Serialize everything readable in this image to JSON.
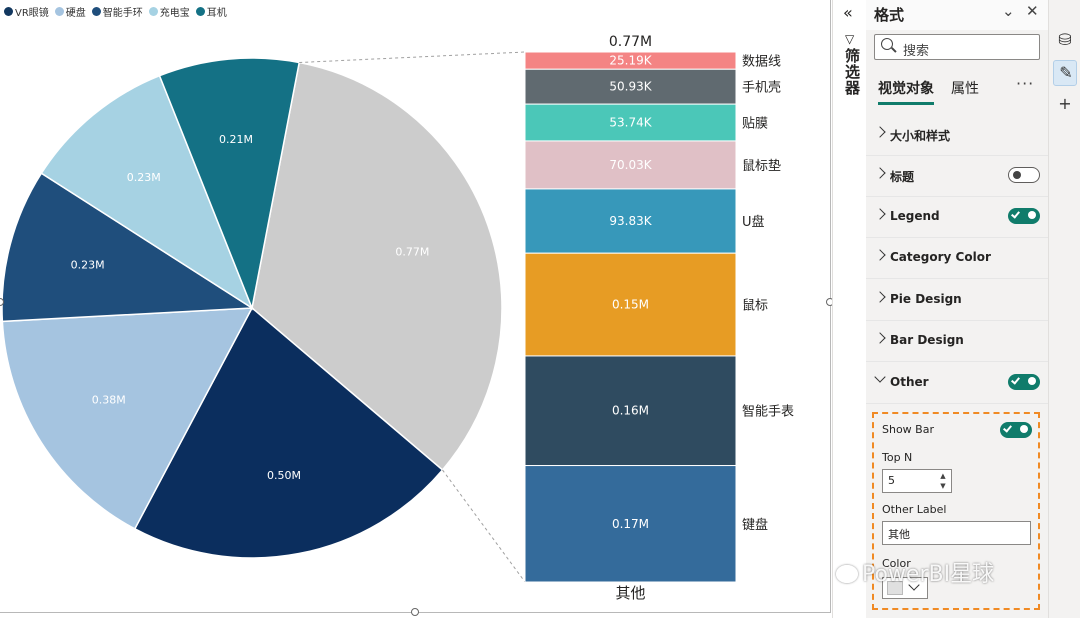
{
  "canvas": {
    "legend": [
      {
        "label": "VR眼镜",
        "color": "#12375f"
      },
      {
        "label": "硬盘",
        "color": "#a5c4e0"
      },
      {
        "label": "智能手环",
        "color": "#1f4e7c"
      },
      {
        "label": "充电宝",
        "color": "#a6d2e3"
      },
      {
        "label": "耳机",
        "color": "#147185"
      }
    ]
  },
  "chart_data": {
    "type": "pie",
    "title": "",
    "pie": {
      "slices": [
        {
          "name": "",
          "value": 0.77,
          "label": "0.77M",
          "color": "#cccccc"
        },
        {
          "name": "",
          "value": 0.5,
          "label": "0.50M",
          "color": "#0b2e5e"
        },
        {
          "name": "",
          "value": 0.38,
          "label": "0.38M",
          "color": "#a5c4e0"
        },
        {
          "name": "",
          "value": 0.23,
          "label": "0.23M",
          "color": "#1f4e7c"
        },
        {
          "name": "",
          "value": 0.23,
          "label": "0.23M",
          "color": "#a6d2e3"
        },
        {
          "name": "",
          "value": 0.21,
          "label": "0.21M",
          "color": "#147185"
        }
      ]
    },
    "bar": {
      "type": "stacked-bar",
      "total_label": "0.77M",
      "category": "其他",
      "segments": [
        {
          "name": "数据线",
          "value": 25.19,
          "label": "25.19K",
          "color": "#f48484"
        },
        {
          "name": "手机壳",
          "value": 50.93,
          "label": "50.93K",
          "color": "#606a70"
        },
        {
          "name": "贴膜",
          "value": 53.74,
          "label": "53.74K",
          "color": "#4bc7b8"
        },
        {
          "name": "鼠标垫",
          "value": 70.03,
          "label": "70.03K",
          "color": "#e0c0c6"
        },
        {
          "name": "U盘",
          "value": 93.83,
          "label": "93.83K",
          "color": "#3798ba"
        },
        {
          "name": "鼠标",
          "value": 150,
          "label": "0.15M",
          "color": "#e79c24"
        },
        {
          "name": "智能手表",
          "value": 160,
          "label": "0.16M",
          "color": "#2f4b60"
        },
        {
          "name": "键盘",
          "value": 170,
          "label": "0.17M",
          "color": "#346b9b"
        }
      ]
    }
  },
  "filters": {
    "label": "筛选器",
    "collapse_icon": "double-chevron-left-icon",
    "filter_icon": "funnel-icon"
  },
  "format_pane": {
    "title": "格式",
    "search_placeholder": "搜索",
    "tabs": {
      "visual": "视觉对象",
      "general": "属性",
      "more": "···"
    },
    "sections": [
      {
        "label": "大小和样式",
        "toggle": null
      },
      {
        "label": "标题",
        "toggle": "off"
      },
      {
        "label": "Legend",
        "toggle": "on"
      },
      {
        "label": "Category Color",
        "toggle": null
      },
      {
        "label": "Pie Design",
        "toggle": null
      },
      {
        "label": "Bar Design",
        "toggle": null
      },
      {
        "label": "Other",
        "toggle": "on",
        "expanded": true
      }
    ],
    "other": {
      "show_bar_label": "Show Bar",
      "show_bar": true,
      "top_n_label": "Top N",
      "top_n_value": "5",
      "other_label_label": "Other Label",
      "other_label_value": "其他",
      "color_label": "Color",
      "color_value": "#e0e0e0"
    }
  },
  "watermark": "PowerBI星球"
}
